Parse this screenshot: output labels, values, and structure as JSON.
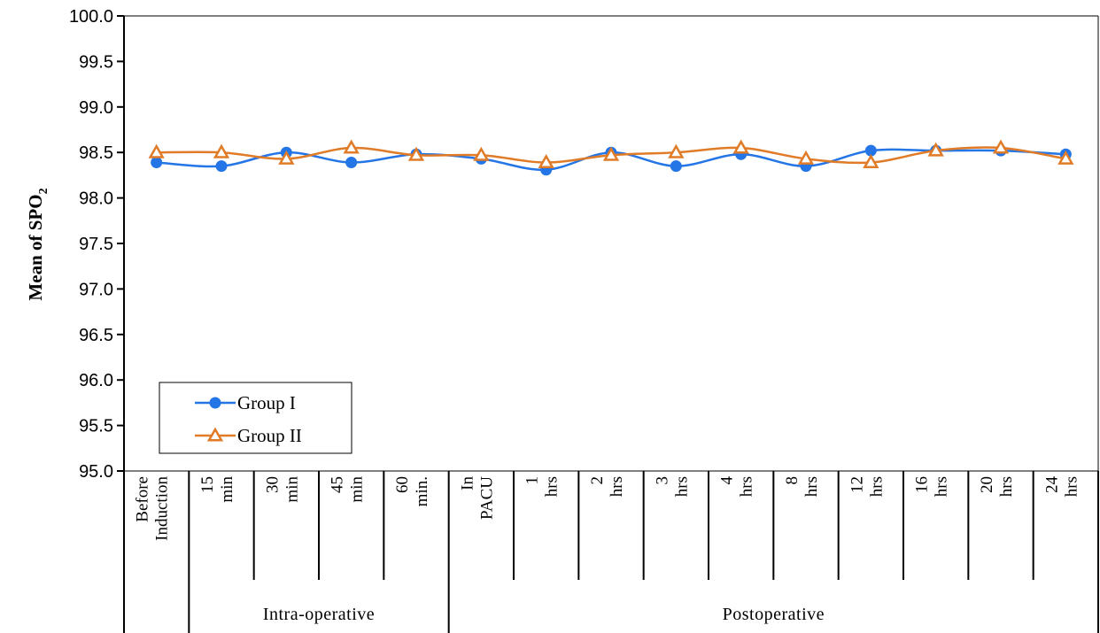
{
  "chart_data": {
    "type": "line",
    "ylabel": "Mean of SPO",
    "ylabel_subscript": "2",
    "ylim": [
      95.0,
      100.0
    ],
    "yticks": [
      "95.0",
      "95.5",
      "96.0",
      "96.5",
      "97.0",
      "97.5",
      "98.0",
      "98.5",
      "99.0",
      "99.5",
      "100.0"
    ],
    "categories": [
      [
        "Before",
        "Induction"
      ],
      [
        "15",
        "min"
      ],
      [
        "30",
        "min"
      ],
      [
        "45",
        "min"
      ],
      [
        "60",
        "min."
      ],
      [
        "In",
        "PACU"
      ],
      [
        "1",
        "hrs"
      ],
      [
        "2",
        "hrs"
      ],
      [
        "3",
        "hrs"
      ],
      [
        "4",
        "hrs"
      ],
      [
        "8",
        "hrs"
      ],
      [
        "12",
        "hrs"
      ],
      [
        "16",
        "hrs"
      ],
      [
        "20",
        "hrs"
      ],
      [
        "24",
        "hrs"
      ]
    ],
    "groups": [
      {
        "label": "Intra-operative",
        "from": 1,
        "to": 4
      },
      {
        "label": "Postoperative",
        "from": 5,
        "to": 14
      }
    ],
    "series": [
      {
        "name": "Group I",
        "color": "#2475e6",
        "marker": "circle",
        "values": [
          98.39,
          98.35,
          98.5,
          98.39,
          98.48,
          98.43,
          98.31,
          98.5,
          98.35,
          98.48,
          98.35,
          98.52,
          98.52,
          98.52,
          98.48
        ]
      },
      {
        "name": "Group II",
        "color": "#e07b28",
        "marker": "triangle",
        "values": [
          98.5,
          98.5,
          98.43,
          98.55,
          98.47,
          98.47,
          98.39,
          98.47,
          98.5,
          98.55,
          98.43,
          98.39,
          98.52,
          98.55,
          98.43
        ]
      }
    ],
    "legend_position": "bottom-left",
    "grid": false
  }
}
